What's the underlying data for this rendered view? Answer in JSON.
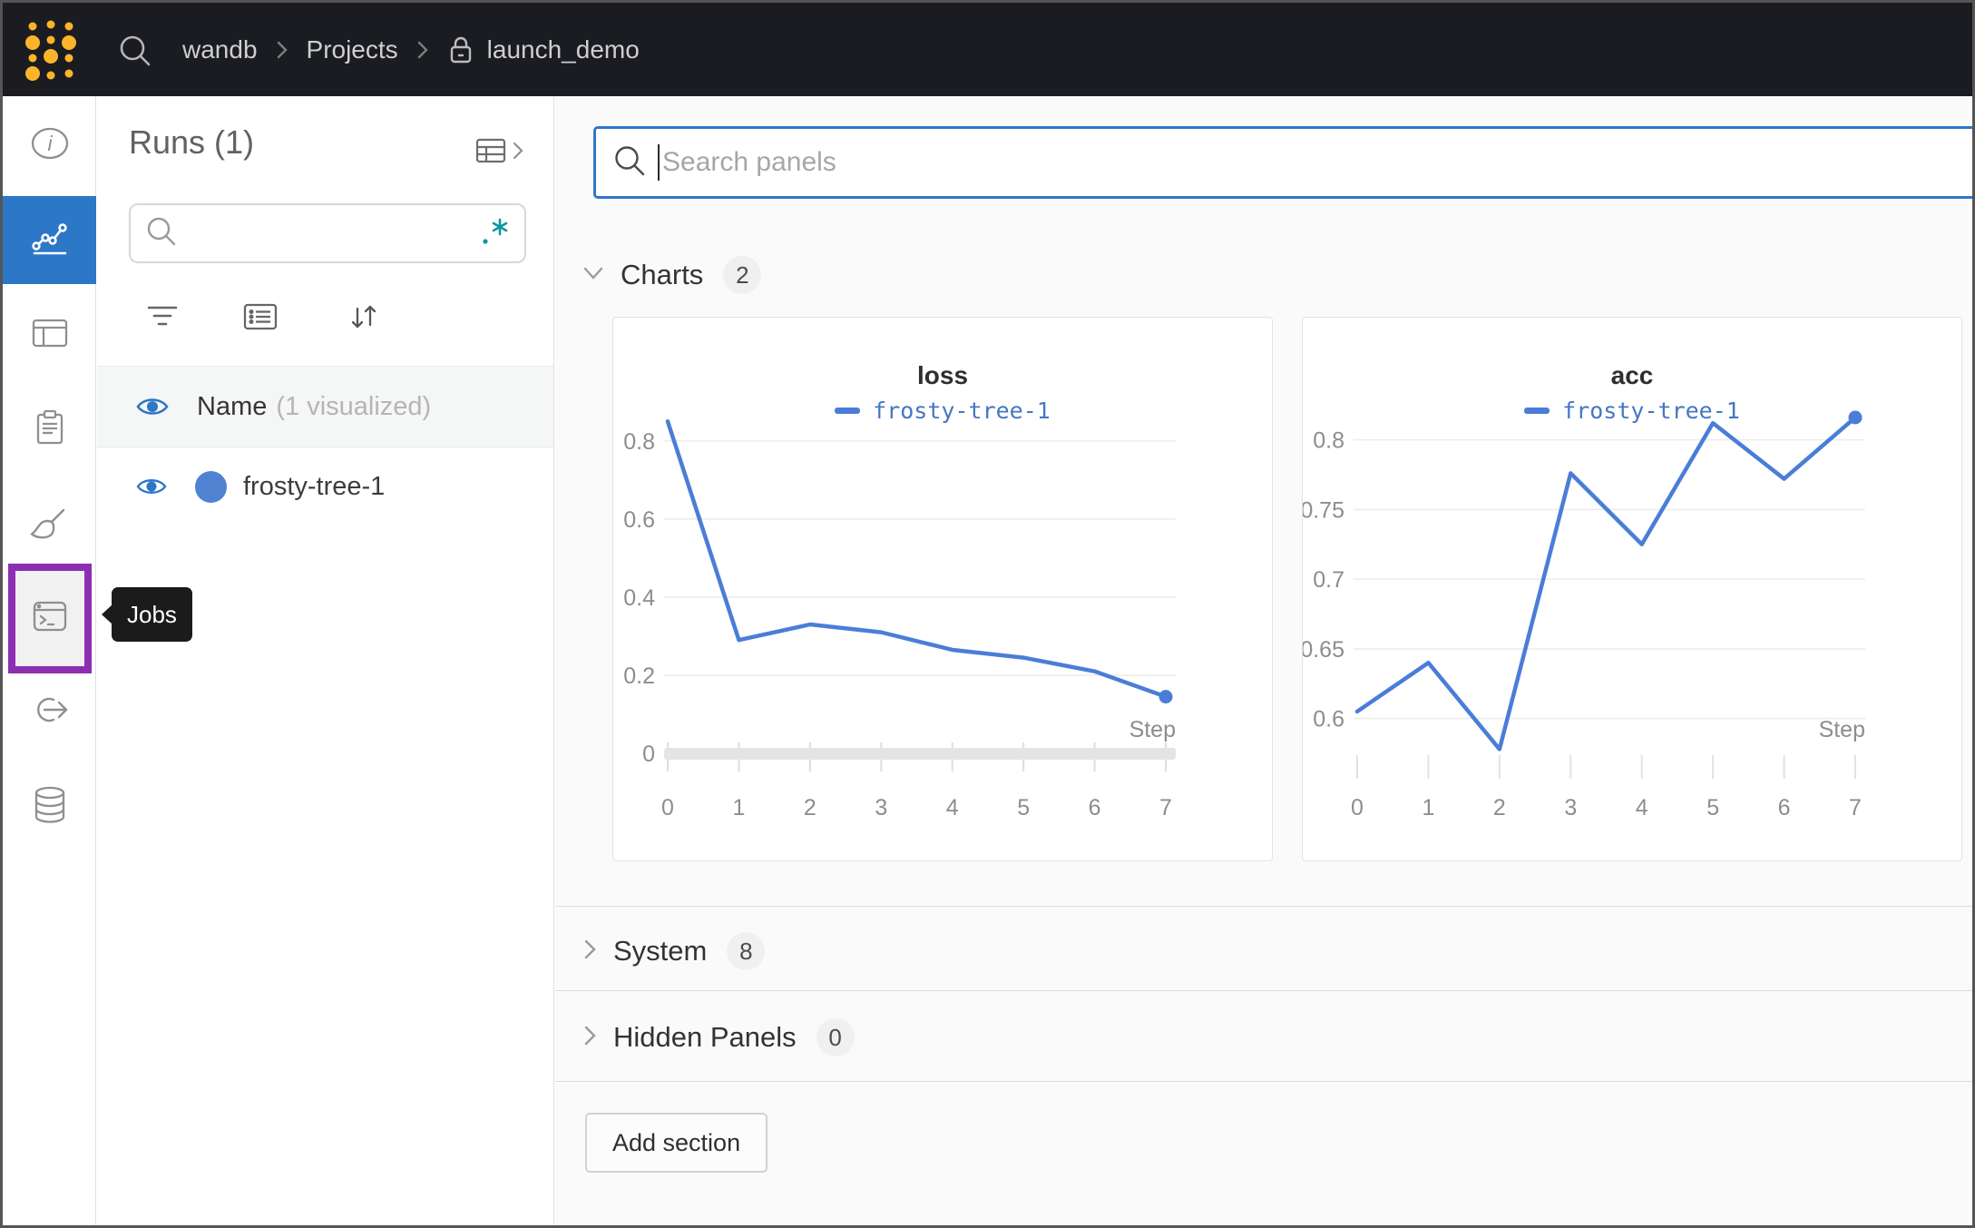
{
  "topbar": {
    "breadcrumb": {
      "items": [
        "wandb",
        "Projects",
        "launch_demo"
      ],
      "project_locked": true
    }
  },
  "sidebar": {
    "items": [
      {
        "icon": "info-icon"
      },
      {
        "icon": "line-chart-icon",
        "selected": true
      },
      {
        "icon": "table-icon"
      },
      {
        "icon": "clipboard-icon"
      },
      {
        "icon": "broom-icon"
      },
      {
        "icon": "terminal-icon",
        "highlighted": true,
        "tooltip": "Jobs"
      },
      {
        "icon": "launch-arrow-icon"
      },
      {
        "icon": "database-icon"
      }
    ],
    "tooltip": "Jobs"
  },
  "runs_panel": {
    "title": "Runs (1)",
    "search": {
      "value": "",
      "regex_icon": "dot-asterisk"
    },
    "header": {
      "name_label": "Name",
      "name_note": "(1 visualized)"
    },
    "runs": [
      {
        "name": "frosty-tree-1",
        "color": "#4f83d1",
        "visible": true
      }
    ]
  },
  "main": {
    "search": {
      "placeholder": "Search panels",
      "value": "",
      "focused": true
    },
    "sections": [
      {
        "label": "Charts",
        "count": "2",
        "expanded": true
      },
      {
        "label": "System",
        "count": "8",
        "expanded": false
      },
      {
        "label": "Hidden Panels",
        "count": "0",
        "expanded": false
      }
    ],
    "add_section_label": "Add section"
  },
  "chart_data": [
    {
      "type": "line",
      "title": "loss",
      "x": [
        0,
        1,
        2,
        3,
        4,
        5,
        6,
        7
      ],
      "series": [
        {
          "name": "frosty-tree-1",
          "values": [
            0.85,
            0.29,
            0.33,
            0.31,
            0.265,
            0.245,
            0.21,
            0.145
          ]
        }
      ],
      "xlabel": "Step",
      "xticks": [
        0,
        1,
        2,
        3,
        4,
        5,
        6,
        7
      ],
      "yticks": [
        0,
        0.2,
        0.4,
        0.6,
        0.8
      ],
      "ylim": [
        0,
        0.86
      ],
      "axis_band": true,
      "grid": true,
      "legend_position": "top",
      "color": "#4b7dd8",
      "end_marker": true
    },
    {
      "type": "line",
      "title": "acc",
      "x": [
        0,
        1,
        2,
        3,
        4,
        5,
        6,
        7
      ],
      "series": [
        {
          "name": "frosty-tree-1",
          "values": [
            0.605,
            0.64,
            0.578,
            0.776,
            0.725,
            0.812,
            0.772,
            0.816
          ]
        }
      ],
      "xlabel": "Step",
      "xticks": [
        0,
        1,
        2,
        3,
        4,
        5,
        6,
        7
      ],
      "yticks": [
        0.6,
        0.65,
        0.7,
        0.75,
        0.8
      ],
      "ylim": [
        0.575,
        0.816
      ],
      "axis_band": false,
      "grid": true,
      "legend_position": "top",
      "color": "#4b7dd8",
      "end_marker": true
    }
  ],
  "colors": {
    "topbar_bg": "#1a1c21",
    "logo_gold": "#fcb42a",
    "accent_blue": "#2d77c7",
    "line_blue": "#4b7dd8",
    "regex_teal": "#0d96a5",
    "highlight_purple": "#8d2fb3",
    "main_bg": "#fafafa"
  }
}
